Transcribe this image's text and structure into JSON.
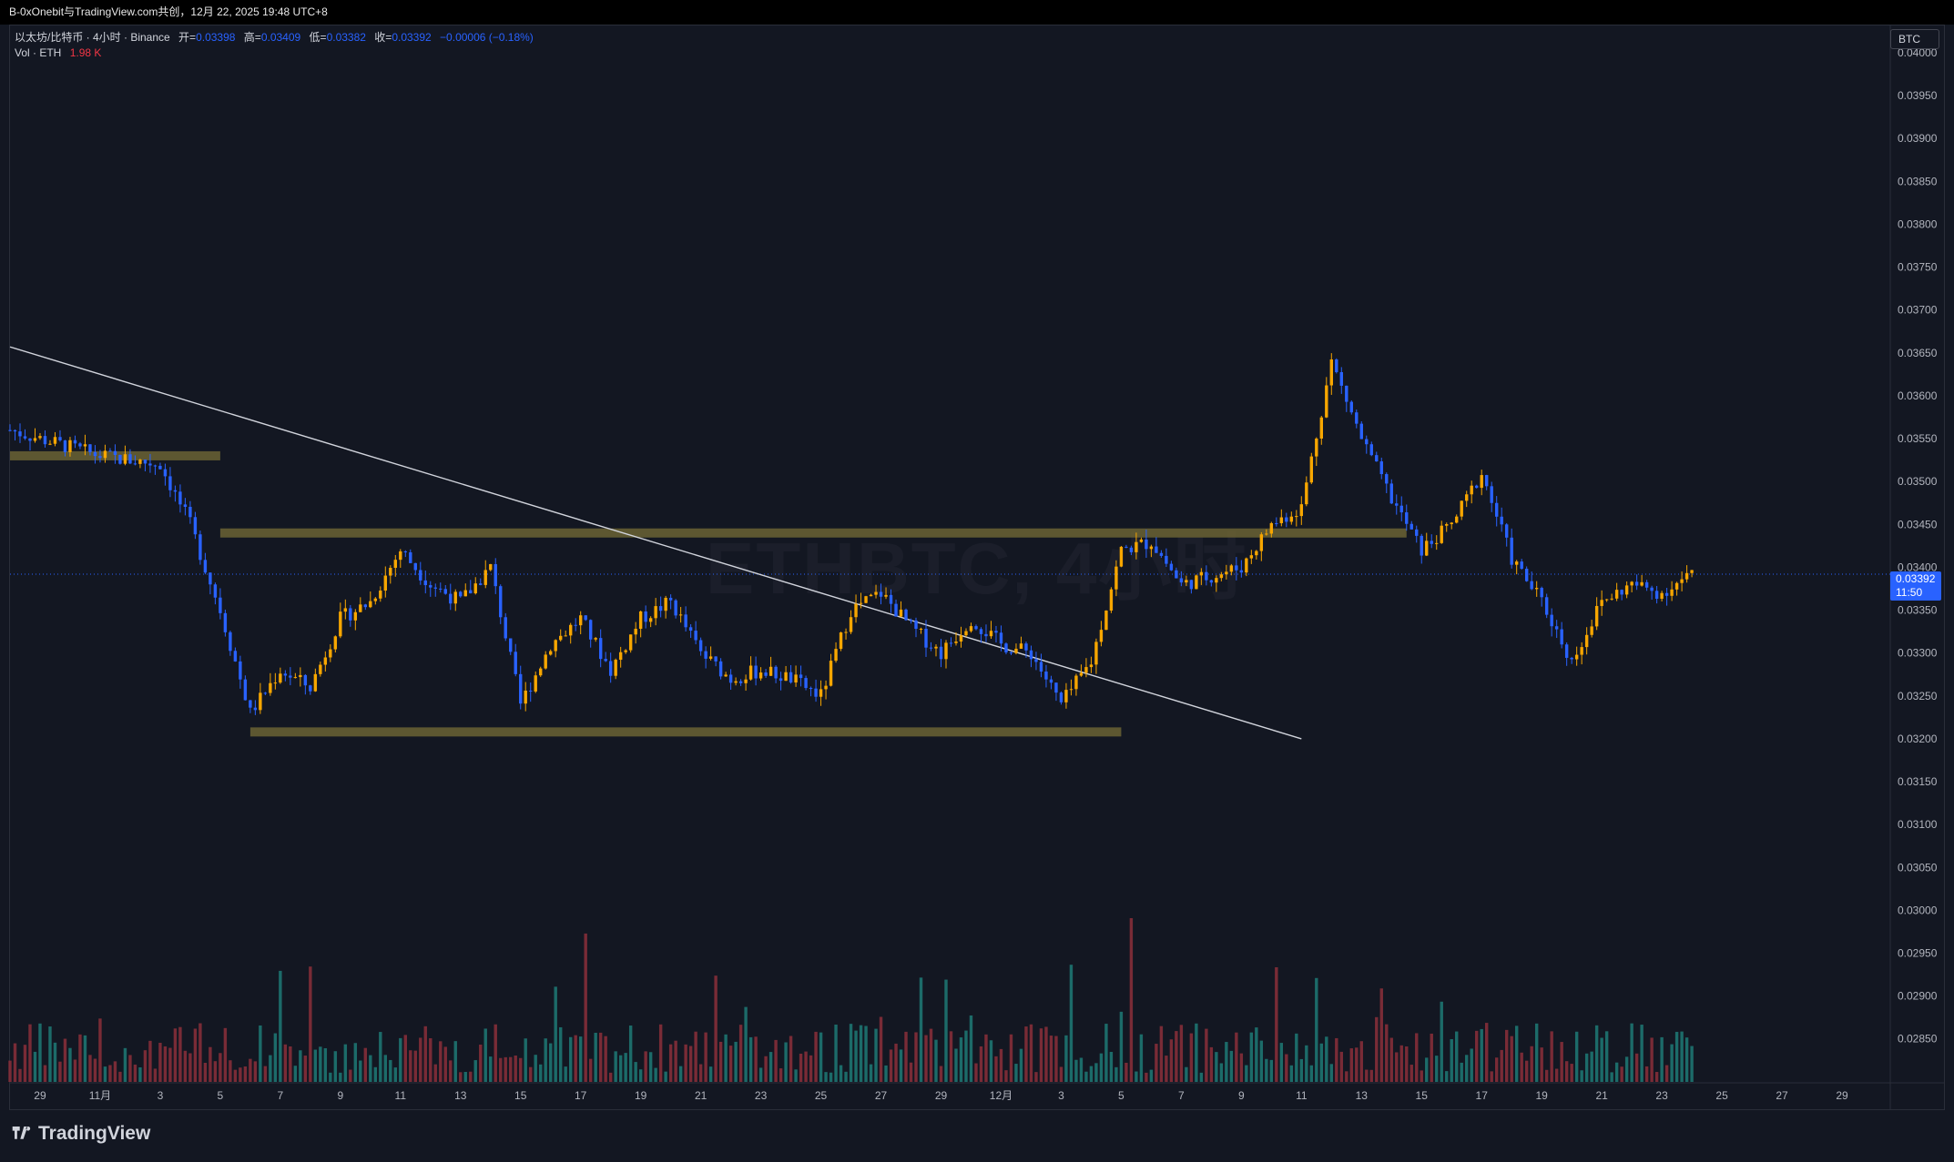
{
  "header": {
    "share_text": "B-0xOnebit与TradingView.com共创，12月 22, 2025 19:48 UTC+8"
  },
  "legend": {
    "symbol_line": "以太坊/比特币 · 4小时 · Binance",
    "open_label": "开=",
    "open_value": "0.03398",
    "high_label": "高=",
    "high_value": "0.03409",
    "low_label": "低=",
    "low_value": "0.03382",
    "close_label": "收=",
    "close_value": "0.03392",
    "change_value": "−0.00006 (−0.18%)",
    "vol_label": "Vol · ETH",
    "vol_value": "1.98 K"
  },
  "watermark": "ETHBTC, 4小时",
  "currency_button": "BTC",
  "last_price": {
    "price": "0.03392",
    "countdown": "11:50"
  },
  "brand": "TradingView",
  "colors": {
    "background": "#131722",
    "up_candle": "#f7a600",
    "down_candle": "#2962ff",
    "volume_up": "#1f7a76",
    "volume_down": "#8c2f39",
    "zone": "#6b6334",
    "trendline": "#d1d4dc",
    "price_line": "#2962ff"
  },
  "chart_data": {
    "type": "candlestick",
    "interval": "4h",
    "y_axis": {
      "ticks": [
        "0.04000",
        "0.03950",
        "0.03900",
        "0.03850",
        "0.03800",
        "0.03750",
        "0.03700",
        "0.03650",
        "0.03600",
        "0.03550",
        "0.03500",
        "0.03450",
        "0.03400",
        "0.03350",
        "0.03300",
        "0.03250",
        "0.03200",
        "0.03150",
        "0.03100",
        "0.03050",
        "0.03000",
        "0.02950",
        "0.02900",
        "0.02850"
      ],
      "range": [
        0.0282,
        0.04
      ]
    },
    "x_axis": {
      "ticks": [
        "29",
        "11月",
        "3",
        "5",
        "7",
        "9",
        "11",
        "13",
        "15",
        "17",
        "19",
        "21",
        "23",
        "25",
        "27",
        "29",
        "12月",
        "3",
        "5",
        "7",
        "9",
        "11",
        "13",
        "15",
        "17",
        "19",
        "21",
        "23",
        "25",
        "27",
        "29"
      ],
      "range_days": [
        -3,
        59
      ]
    },
    "price_path_daily": [
      {
        "day": -3,
        "price": 0.0356
      },
      {
        "day": 0,
        "price": 0.0353
      },
      {
        "day": 2,
        "price": 0.0352
      },
      {
        "day": 3,
        "price": 0.0345
      },
      {
        "day": 4,
        "price": 0.0335
      },
      {
        "day": 5,
        "price": 0.0323
      },
      {
        "day": 6,
        "price": 0.0328
      },
      {
        "day": 7,
        "price": 0.0326
      },
      {
        "day": 8,
        "price": 0.0334
      },
      {
        "day": 9,
        "price": 0.0336
      },
      {
        "day": 10,
        "price": 0.0342
      },
      {
        "day": 11,
        "price": 0.0338
      },
      {
        "day": 12,
        "price": 0.0336
      },
      {
        "day": 13,
        "price": 0.034
      },
      {
        "day": 14,
        "price": 0.0324
      },
      {
        "day": 15,
        "price": 0.0331
      },
      {
        "day": 16,
        "price": 0.0334
      },
      {
        "day": 17,
        "price": 0.0328
      },
      {
        "day": 18,
        "price": 0.0334
      },
      {
        "day": 19,
        "price": 0.0336
      },
      {
        "day": 20,
        "price": 0.033
      },
      {
        "day": 21,
        "price": 0.0327
      },
      {
        "day": 22,
        "price": 0.0328
      },
      {
        "day": 23,
        "price": 0.0327
      },
      {
        "day": 24,
        "price": 0.0325
      },
      {
        "day": 25,
        "price": 0.0335
      },
      {
        "day": 26,
        "price": 0.0337
      },
      {
        "day": 27,
        "price": 0.0333
      },
      {
        "day": 28,
        "price": 0.033
      },
      {
        "day": 29,
        "price": 0.0334
      },
      {
        "day": 30,
        "price": 0.0331
      },
      {
        "day": 31,
        "price": 0.033
      },
      {
        "day": 32,
        "price": 0.0324
      },
      {
        "day": 33,
        "price": 0.0329
      },
      {
        "day": 34,
        "price": 0.0342
      },
      {
        "day": 35,
        "price": 0.0343
      },
      {
        "day": 36,
        "price": 0.0338
      },
      {
        "day": 37,
        "price": 0.0339
      },
      {
        "day": 38,
        "price": 0.034
      },
      {
        "day": 39,
        "price": 0.0345
      },
      {
        "day": 40,
        "price": 0.0347
      },
      {
        "day": 41,
        "price": 0.0364
      },
      {
        "day": 42,
        "price": 0.0355
      },
      {
        "day": 43,
        "price": 0.0348
      },
      {
        "day": 44,
        "price": 0.0342
      },
      {
        "day": 45,
        "price": 0.0345
      },
      {
        "day": 46,
        "price": 0.0351
      },
      {
        "day": 47,
        "price": 0.0341
      },
      {
        "day": 48,
        "price": 0.0336
      },
      {
        "day": 49,
        "price": 0.0329
      },
      {
        "day": 50,
        "price": 0.0336
      },
      {
        "day": 51,
        "price": 0.0338
      },
      {
        "day": 52,
        "price": 0.0337
      },
      {
        "day": 53,
        "price": 0.03392
      }
    ],
    "horizontal_zones": [
      {
        "price": 0.0353,
        "from_day": -3,
        "to_day": 4
      },
      {
        "price": 0.0344,
        "from_day": 4,
        "to_day": 43.5
      },
      {
        "price": 0.03208,
        "from_day": 5,
        "to_day": 34
      }
    ],
    "trendline": {
      "from": {
        "day": -3,
        "price": 0.03657
      },
      "to": {
        "day": 40,
        "price": 0.032
      }
    },
    "last_close": 0.03392
  }
}
